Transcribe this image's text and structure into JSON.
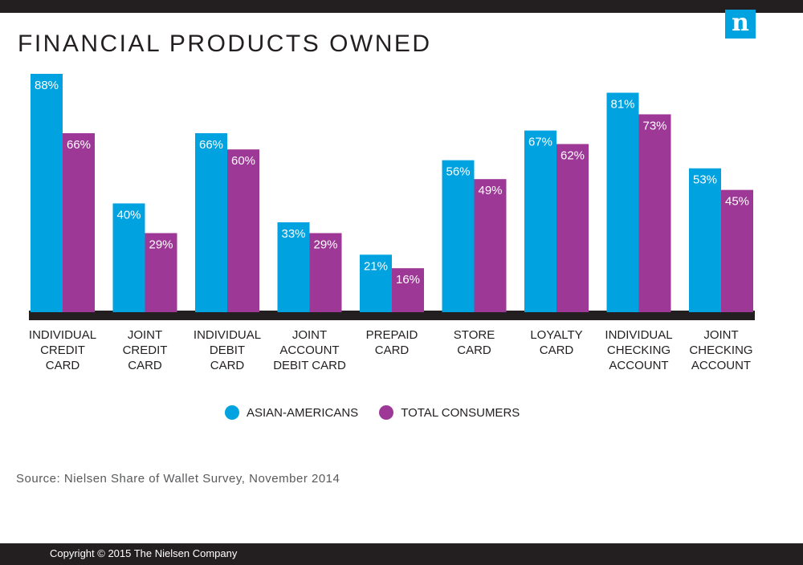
{
  "header": {
    "title": "FINANCIAL PRODUCTS OWNED",
    "logo_text": "n",
    "logo_icon": "nielsen-logo-icon"
  },
  "colors": {
    "asian_americans": "#00a2e0",
    "total_consumers": "#9e3896",
    "dark": "#231f20",
    "label_text": "#ffffff"
  },
  "chart_data": {
    "type": "bar",
    "title": "FINANCIAL PRODUCTS OWNED",
    "xlabel": "",
    "ylabel": "",
    "ylim": [
      0,
      88
    ],
    "grid": false,
    "legend_position": "bottom",
    "value_suffix": "%",
    "categories": [
      [
        "INDIVIDUAL",
        "CREDIT",
        "CARD"
      ],
      [
        "JOINT",
        "CREDIT",
        "CARD"
      ],
      [
        "INDIVIDUAL",
        "DEBIT",
        "CARD"
      ],
      [
        "JOINT",
        "ACCOUNT",
        "DEBIT CARD"
      ],
      [
        "PREPAID",
        "CARD"
      ],
      [
        "STORE",
        "CARD"
      ],
      [
        "LOYALTY",
        "CARD"
      ],
      [
        "INDIVIDUAL",
        "CHECKING",
        "ACCOUNT"
      ],
      [
        "JOINT",
        "CHECKING",
        "ACCOUNT"
      ]
    ],
    "series": [
      {
        "name": "ASIAN-AMERICANS",
        "color": "#00a2e0",
        "values": [
          88,
          40,
          66,
          33,
          21,
          56,
          67,
          81,
          53
        ]
      },
      {
        "name": "TOTAL CONSUMERS",
        "color": "#9e3896",
        "values": [
          66,
          29,
          60,
          29,
          16,
          49,
          62,
          73,
          45
        ]
      }
    ]
  },
  "legend": {
    "asian_label": "ASIAN-AMERICANS",
    "total_label": "TOTAL CONSUMERS"
  },
  "source": "Source: Nielsen Share of Wallet Survey, November 2014",
  "footer": {
    "copyright": "Copyright © 2015 The Nielsen Company"
  }
}
